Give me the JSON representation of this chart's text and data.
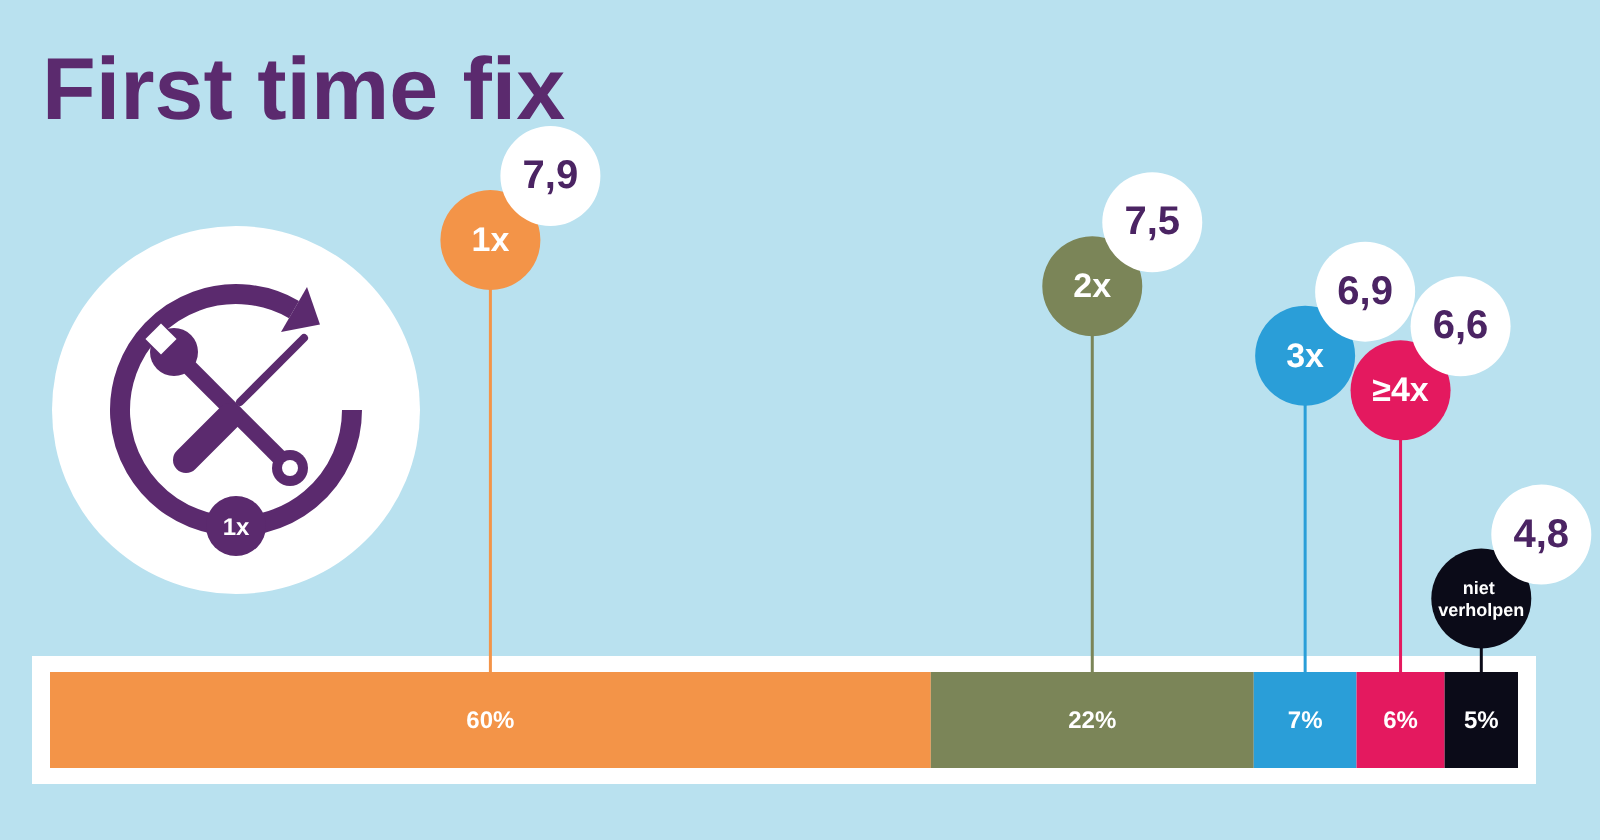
{
  "chart_data": [
    {
      "type": "other",
      "title": "First time fix",
      "categories": [
        "1x",
        "2x",
        "3x",
        "≥4x",
        "niet verholpen"
      ],
      "values": [
        7.9,
        7.5,
        6.9,
        6.6,
        4.8
      ],
      "value_labels": [
        "7,9",
        "7,5",
        "6,9",
        "6,6",
        "4,8"
      ],
      "annotations": [
        "1x"
      ]
    },
    {
      "type": "bar",
      "orientation": "horizontal",
      "stacked": true,
      "categories": [
        null
      ],
      "tick_labels": false,
      "series": [
        {
          "color": "#f39448",
          "values": [
            60
          ],
          "value_labels": [
            "60%"
          ]
        },
        {
          "color": "#7b8558",
          "values": [
            22
          ],
          "value_labels": [
            "22%"
          ]
        },
        {
          "color": "#2a9ed8",
          "values": [
            7
          ],
          "value_labels": [
            "7%"
          ]
        },
        {
          "color": "#e4195f",
          "values": [
            6
          ],
          "value_labels": [
            "6%"
          ]
        },
        {
          "color": "#0b0b18",
          "values": [
            5
          ],
          "value_labels": [
            "5%"
          ]
        }
      ]
    }
  ]
}
